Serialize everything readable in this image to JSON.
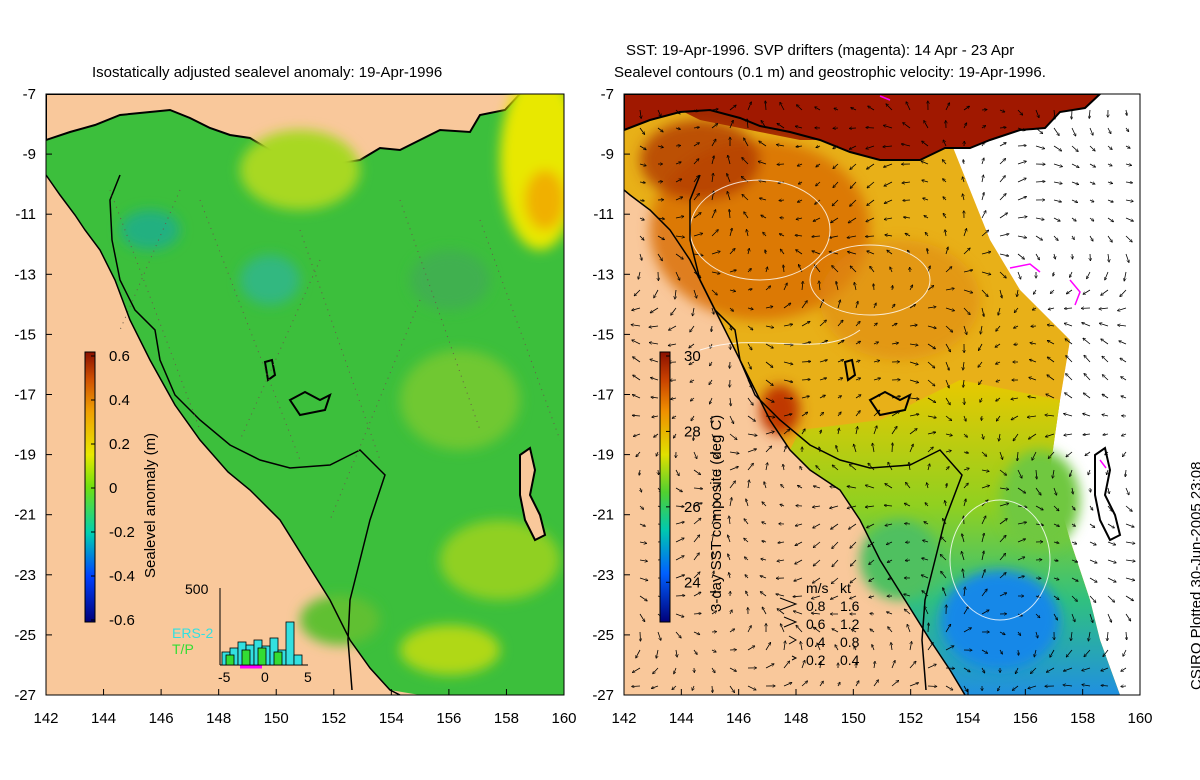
{
  "titles": {
    "left": "Isostatically adjusted sealevel anomaly: 19-Apr-1996",
    "right_line1": "SST: 19-Apr-1996. SVP drifters (magenta): 14 Apr - 23 Apr",
    "right_line2": "Sealevel contours (0.1 m) and geostrophic velocity: 19-Apr-1996."
  },
  "credit": "CSIRO Plotted 30-Jun-2005 23:08",
  "axes": {
    "x_ticks": [
      "142",
      "144",
      "146",
      "148",
      "150",
      "152",
      "154",
      "156",
      "158",
      "160"
    ],
    "y_ticks": [
      "-7",
      "-9",
      "-11",
      "-13",
      "-15",
      "-17",
      "-19",
      "-21",
      "-23",
      "-25",
      "-27"
    ]
  },
  "left_map": {
    "colorbar": {
      "label": "Sealevel anomaly (m)",
      "ticks": [
        "0.6",
        "0.4",
        "0.2",
        "0",
        "-0.2",
        "-0.4",
        "-0.6"
      ],
      "range": [
        -0.6,
        0.6
      ]
    },
    "histogram": {
      "ymax_label": "500",
      "x_ticks": [
        "-5",
        "0",
        "5"
      ],
      "legend_ers2": "ERS-2",
      "legend_tp": "T/P",
      "ers2_color": "#33e0e0",
      "tp_color": "#33dd33"
    }
  },
  "right_map": {
    "colorbar": {
      "label": "3-day SST composite (deg C)",
      "ticks": [
        "30",
        "28",
        "26",
        "24"
      ],
      "range": [
        23,
        30
      ]
    },
    "velocity_key": {
      "header_ms": "m/s",
      "header_kt": "kt",
      "rows": [
        {
          "ms": "0.8",
          "kt": "1.6"
        },
        {
          "ms": "0.6",
          "kt": "1.2"
        },
        {
          "ms": "0.4",
          "kt": "0.8"
        },
        {
          "ms": "0.2",
          "kt": "0.4"
        }
      ]
    }
  },
  "colors": {
    "land": "#f9c89b",
    "sla_ocean": "#3cbf3c",
    "drifters": "#ff00ff",
    "sst_missing": "#ffffff"
  }
}
